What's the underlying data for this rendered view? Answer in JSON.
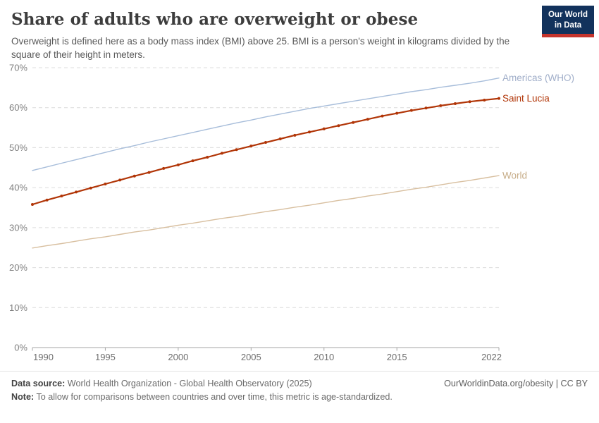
{
  "header": {
    "title": "Share of adults who are overweight or obese",
    "subtitle": "Overweight is defined here as a body mass index (BMI) above 25. BMI is a person's weight in kilograms divided by the square of their height in meters.",
    "logo": {
      "line1": "Our World",
      "line2": "in Data",
      "bg_color": "#12325C",
      "stripe_color": "#C5342C"
    }
  },
  "footer": {
    "data_source_label": "Data source:",
    "data_source_text": " World Health Organization - Global Health Observatory (2025)",
    "note_label": "Note:",
    "note_text": " To allow for comparisons between countries and over time, this metric is age-standardized.",
    "credit": "OurWorldinData.org/obesity | CC BY"
  },
  "colors": {
    "grid": "#dcdcdc",
    "axis": "#a6a6a6",
    "y_tick_text": "#808080",
    "x_tick_text": "#6f6f6f"
  },
  "chart_data": {
    "type": "line",
    "title": "Share of adults who are overweight or obese",
    "xlabel": "",
    "ylabel": "",
    "xlim": [
      1990,
      2022
    ],
    "ylim": [
      0,
      70
    ],
    "grid": "horizontal-dashed",
    "legend_position": "right-edge-labels",
    "x": [
      1990,
      1991,
      1992,
      1993,
      1994,
      1995,
      1996,
      1997,
      1998,
      1999,
      2000,
      2001,
      2002,
      2003,
      2004,
      2005,
      2006,
      2007,
      2008,
      2009,
      2010,
      2011,
      2012,
      2013,
      2014,
      2015,
      2016,
      2017,
      2018,
      2019,
      2020,
      2021,
      2022
    ],
    "xticks": [
      {
        "value": 1990,
        "label": "1990"
      },
      {
        "value": 1995,
        "label": "1995"
      },
      {
        "value": 2000,
        "label": "2000"
      },
      {
        "value": 2005,
        "label": "2005"
      },
      {
        "value": 2010,
        "label": "2010"
      },
      {
        "value": 2015,
        "label": "2015"
      },
      {
        "value": 2022,
        "label": "2022"
      }
    ],
    "yticks": [
      {
        "value": 0,
        "label": "0%"
      },
      {
        "value": 10,
        "label": "10%"
      },
      {
        "value": 20,
        "label": "20%"
      },
      {
        "value": 30,
        "label": "30%"
      },
      {
        "value": 40,
        "label": "40%"
      },
      {
        "value": 50,
        "label": "50%"
      },
      {
        "value": 60,
        "label": "60%"
      },
      {
        "value": 70,
        "label": "70%"
      }
    ],
    "series": [
      {
        "name": "Americas (WHO)",
        "color": "#A7BDDA",
        "label_color": "#A0AEC9",
        "emphasis": false,
        "markers": false,
        "values": [
          44.3,
          45.2,
          46.1,
          47.0,
          47.9,
          48.8,
          49.7,
          50.5,
          51.4,
          52.2,
          53.0,
          53.8,
          54.6,
          55.4,
          56.2,
          56.9,
          57.7,
          58.4,
          59.1,
          59.8,
          60.4,
          61.0,
          61.6,
          62.2,
          62.8,
          63.4,
          64.0,
          64.5,
          65.1,
          65.6,
          66.1,
          66.7,
          67.4
        ]
      },
      {
        "name": "World",
        "color": "#D8BF9F",
        "label_color": "#C7AD89",
        "emphasis": false,
        "markers": false,
        "values": [
          24.9,
          25.5,
          26.0,
          26.6,
          27.2,
          27.7,
          28.3,
          28.9,
          29.4,
          30.0,
          30.6,
          31.1,
          31.7,
          32.3,
          32.8,
          33.4,
          34.0,
          34.5,
          35.1,
          35.6,
          36.2,
          36.8,
          37.3,
          37.9,
          38.4,
          39.0,
          39.6,
          40.1,
          40.7,
          41.3,
          41.8,
          42.4,
          43.0
        ]
      },
      {
        "name": "Saint Lucia",
        "color": "#B13507",
        "label_color": "#B13507",
        "emphasis": true,
        "markers": true,
        "values": [
          35.8,
          36.9,
          37.9,
          38.9,
          39.9,
          40.9,
          41.9,
          42.9,
          43.8,
          44.8,
          45.7,
          46.7,
          47.6,
          48.6,
          49.5,
          50.4,
          51.3,
          52.2,
          53.1,
          53.9,
          54.7,
          55.5,
          56.3,
          57.1,
          57.9,
          58.6,
          59.3,
          59.9,
          60.5,
          61.0,
          61.5,
          61.9,
          62.3
        ]
      }
    ]
  }
}
